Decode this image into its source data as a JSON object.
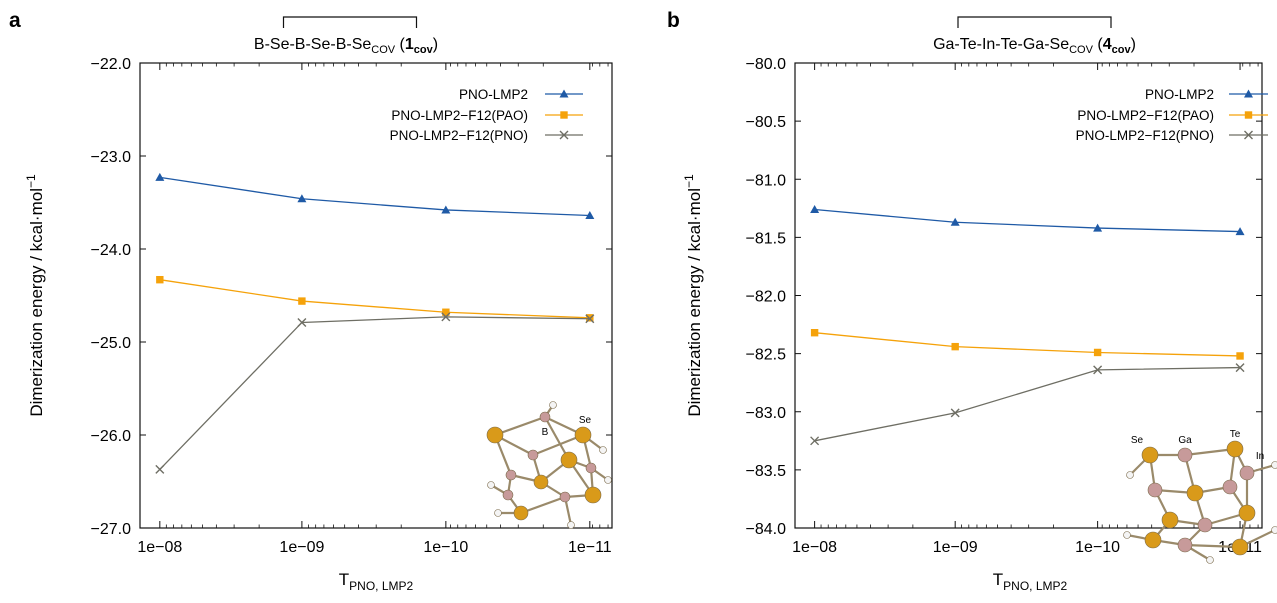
{
  "figure": {
    "panels": [
      {
        "label": "a",
        "title_main": "B-Se-B-Se-B-Se",
        "title_sub": "COV",
        "title_tag_num": "1",
        "title_tag_sub": "cov",
        "molecule_atom_labels": [
          "B",
          "Se"
        ],
        "colors": {
          "lmp2": "#1f5aa6",
          "pao": "#f5a20a",
          "pno": "#6e6e64"
        }
      },
      {
        "label": "b",
        "title_main": "Ga-Te-In-Te-Ga-Se",
        "title_sub": "COV",
        "title_tag_num": "4",
        "title_tag_sub": "cov",
        "molecule_atom_labels": [
          "Se",
          "Ga",
          "Te",
          "In"
        ],
        "colors": {
          "lmp2": "#1f5aa6",
          "pao": "#f5a20a",
          "pno": "#6e6e64"
        }
      }
    ]
  },
  "chart_data": [
    {
      "type": "line",
      "title": "B-Se-B-Se-B-Se COV (1 cov)",
      "xlabel": "T PNO, LMP2",
      "ylabel": "Dimerization energy / kcal·mol−1",
      "ylabel_main": "Dimerization energy / kcal·mol",
      "ylabel_sup": "−1",
      "xlabel_main": "T",
      "xlabel_sub": "PNO, LMP2",
      "categories": [
        "1e−08",
        "1e−09",
        "1e−10",
        "1e−11"
      ],
      "ylim": [
        -27.0,
        -22.0
      ],
      "yticks": [
        "−22.0",
        "−23.0",
        "−24.0",
        "−25.0",
        "−26.0",
        "−27.0"
      ],
      "ytick_values": [
        -22.0,
        -23.0,
        -24.0,
        -25.0,
        -26.0,
        -27.0
      ],
      "legend": "top-right",
      "grid": false,
      "series": [
        {
          "name": "PNO-LMP2",
          "marker": "triangle",
          "values": [
            -23.23,
            -23.46,
            -23.58,
            -23.64
          ]
        },
        {
          "name": "PNO-LMP2−F12(PAO)",
          "marker": "square",
          "values": [
            -24.33,
            -24.56,
            -24.68,
            -24.74
          ]
        },
        {
          "name": "PNO-LMP2−F12(PNO)",
          "marker": "x",
          "values": [
            -26.37,
            -24.79,
            -24.73,
            -24.75
          ]
        }
      ]
    },
    {
      "type": "line",
      "title": "Ga-Te-In-Te-Ga-Se COV (4 cov)",
      "xlabel": "T PNO, LMP2",
      "ylabel": "Dimerization energy / kcal·mol−1",
      "ylabel_main": "Dimerization energy / kcal·mol",
      "ylabel_sup": "−1",
      "xlabel_main": "T",
      "xlabel_sub": "PNO, LMP2",
      "categories": [
        "1e−08",
        "1e−09",
        "1e−10",
        "1e−11"
      ],
      "ylim": [
        -84.0,
        -80.0
      ],
      "yticks": [
        "−80.0",
        "−80.5",
        "−81.0",
        "−81.5",
        "−82.0",
        "−82.5",
        "−83.0",
        "−83.5",
        "−84.0"
      ],
      "ytick_values": [
        -80.0,
        -80.5,
        -81.0,
        -81.5,
        -82.0,
        -82.5,
        -83.0,
        -83.5,
        -84.0
      ],
      "legend": "top-right",
      "grid": false,
      "series": [
        {
          "name": "PNO-LMP2",
          "marker": "triangle",
          "values": [
            -81.26,
            -81.37,
            -81.42,
            -81.45
          ]
        },
        {
          "name": "PNO-LMP2−F12(PAO)",
          "marker": "square",
          "values": [
            -82.32,
            -82.44,
            -82.49,
            -82.52
          ]
        },
        {
          "name": "PNO-LMP2−F12(PNO)",
          "marker": "x",
          "values": [
            -83.25,
            -83.01,
            -82.64,
            -82.62
          ]
        }
      ]
    }
  ]
}
